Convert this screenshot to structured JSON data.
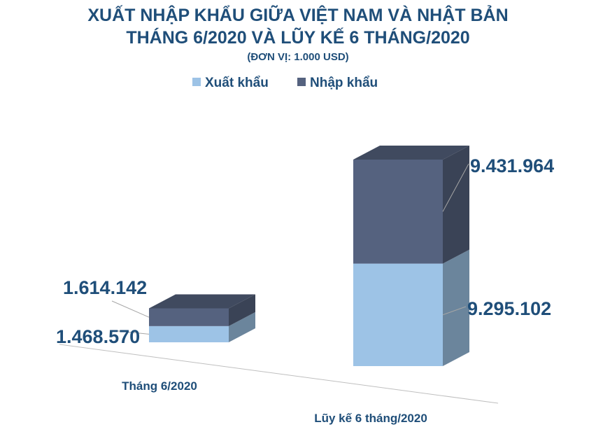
{
  "chart_data": {
    "type": "bar3d-stacked",
    "title": [
      "XUẤT NHẬP KHẨU GIỮA VIỆT NAM VÀ NHẬT BẢN",
      "THÁNG 6/2020 VÀ LŨY KẾ 6 THÁNG/2020"
    ],
    "subtitle": "(ĐƠN VỊ: 1.000 USD)",
    "categories": [
      "Tháng 6/2020",
      "Lũy kế 6 tháng/2020"
    ],
    "series": [
      {
        "name": "Xuất khẩu",
        "color": "#9dc3e6",
        "values": [
          1468570,
          9295102
        ],
        "value_labels": [
          "1.468.570",
          "9.295.102"
        ]
      },
      {
        "name": "Nhập khẩu",
        "color": "#55627f",
        "values": [
          1614142,
          9431964
        ],
        "value_labels": [
          "1.614.142",
          "9.431.964"
        ]
      }
    ],
    "legend": "top"
  }
}
